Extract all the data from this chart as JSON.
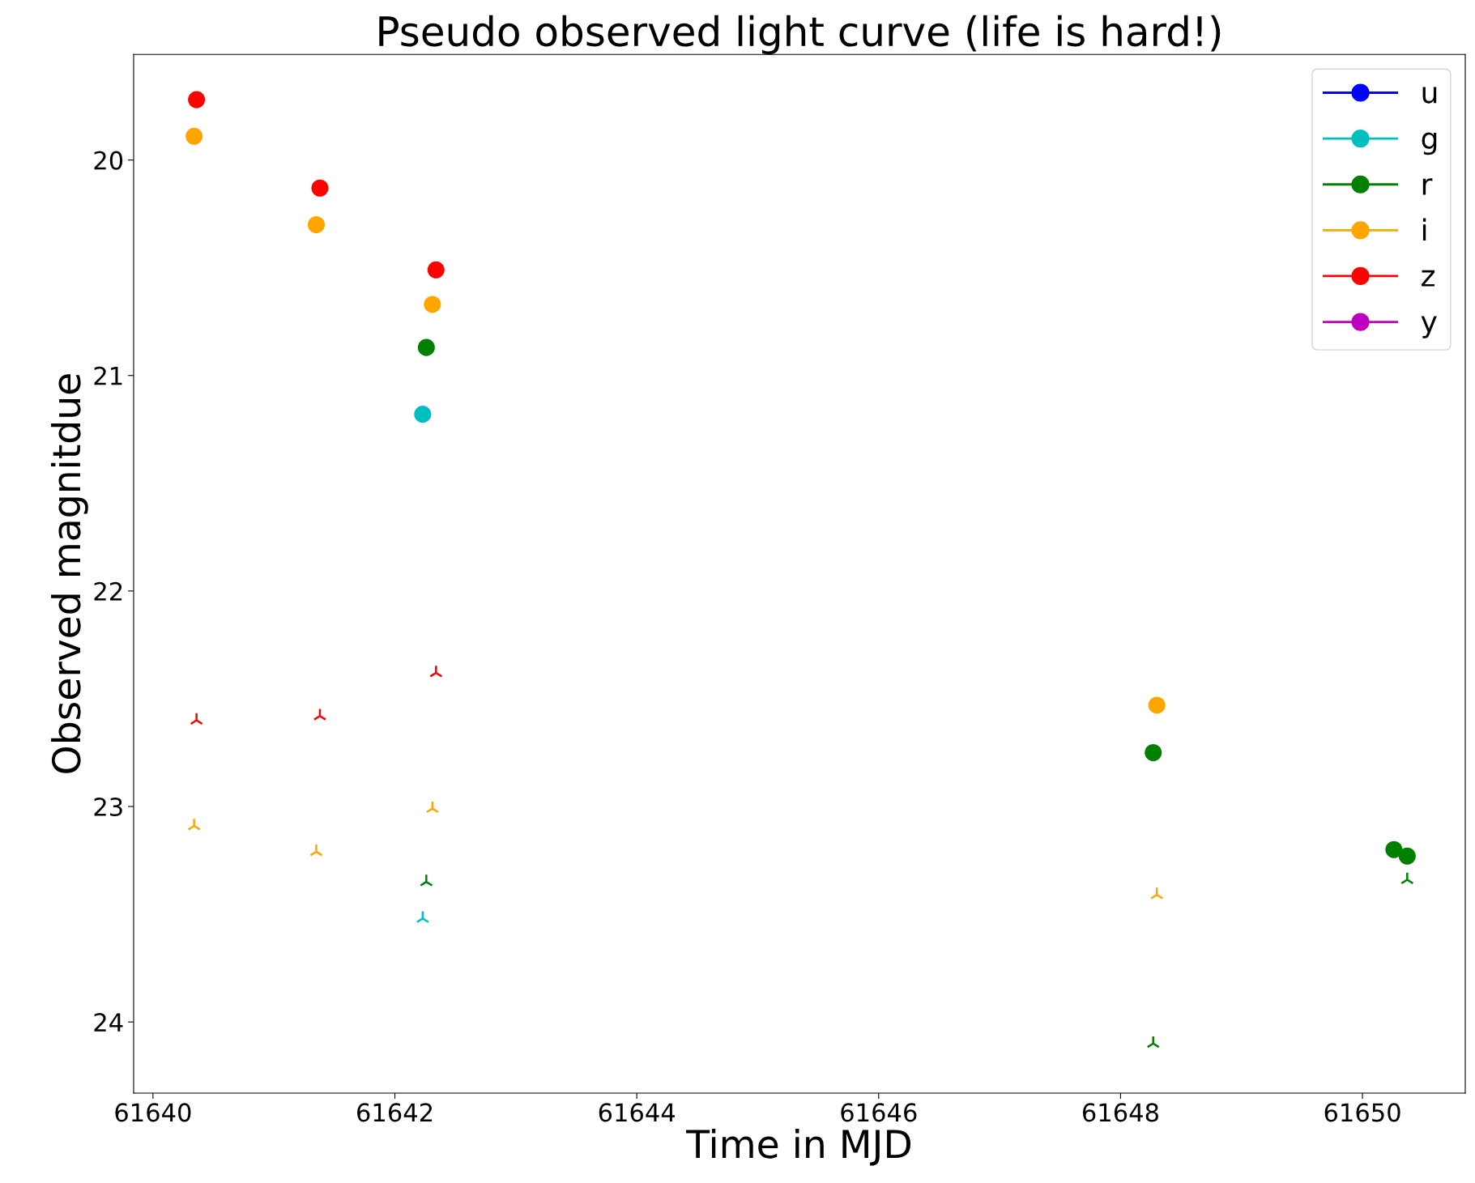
{
  "chart_data": {
    "type": "scatter",
    "title": "Pseudo observed light curve (life is hard!)",
    "xlabel": "Time in MJD",
    "ylabel": "Observed magnitdue",
    "xlim": [
      61639.84,
      61650.85
    ],
    "xticks": [
      61640,
      61642,
      61644,
      61646,
      61648,
      61650
    ],
    "ylim": [
      24.33,
      19.51
    ],
    "yticks": [
      20,
      21,
      22,
      23,
      24
    ],
    "grid": false,
    "legend": "top right",
    "series": [
      {
        "name": "u",
        "color": "#0000ff",
        "marker": "circle"
      },
      {
        "name": "g",
        "color": "#00bfbf",
        "marker": "circle",
        "x": [
          61642.23
        ],
        "values": [
          21.18
        ]
      },
      {
        "name": "r",
        "color": "#008000",
        "marker": "circle",
        "x": [
          61642.26,
          61648.27,
          61650.26,
          61650.37
        ],
        "values": [
          20.87,
          22.75,
          23.2,
          23.23
        ]
      },
      {
        "name": "i",
        "color": "#ffa500",
        "marker": "circle",
        "x": [
          61640.34,
          61641.35,
          61642.31,
          61648.3
        ],
        "values": [
          19.89,
          20.3,
          20.67,
          22.53
        ]
      },
      {
        "name": "z",
        "color": "#ff0000",
        "marker": "circle",
        "x": [
          61640.36,
          61641.38,
          61642.34
        ],
        "values": [
          19.72,
          20.13,
          20.51
        ]
      },
      {
        "name": "y",
        "color": "#bf00bf",
        "marker": "circle"
      },
      {
        "color": "#00bfbf",
        "marker": "cross",
        "x": [
          61642.23
        ],
        "values": [
          23.52
        ]
      },
      {
        "color": "#008000",
        "marker": "cross",
        "x": [
          61642.26,
          61648.27,
          61650.37
        ],
        "values": [
          23.35,
          24.1,
          23.34
        ]
      },
      {
        "color": "#ffa500",
        "marker": "cross",
        "x": [
          61640.34,
          61641.35,
          61642.31,
          61648.3
        ],
        "values": [
          23.09,
          23.21,
          23.01,
          23.41
        ]
      },
      {
        "color": "#ff0000",
        "marker": "cross",
        "x": [
          61640.36,
          61641.38,
          61642.34
        ],
        "values": [
          22.6,
          22.58,
          22.38
        ]
      }
    ]
  }
}
